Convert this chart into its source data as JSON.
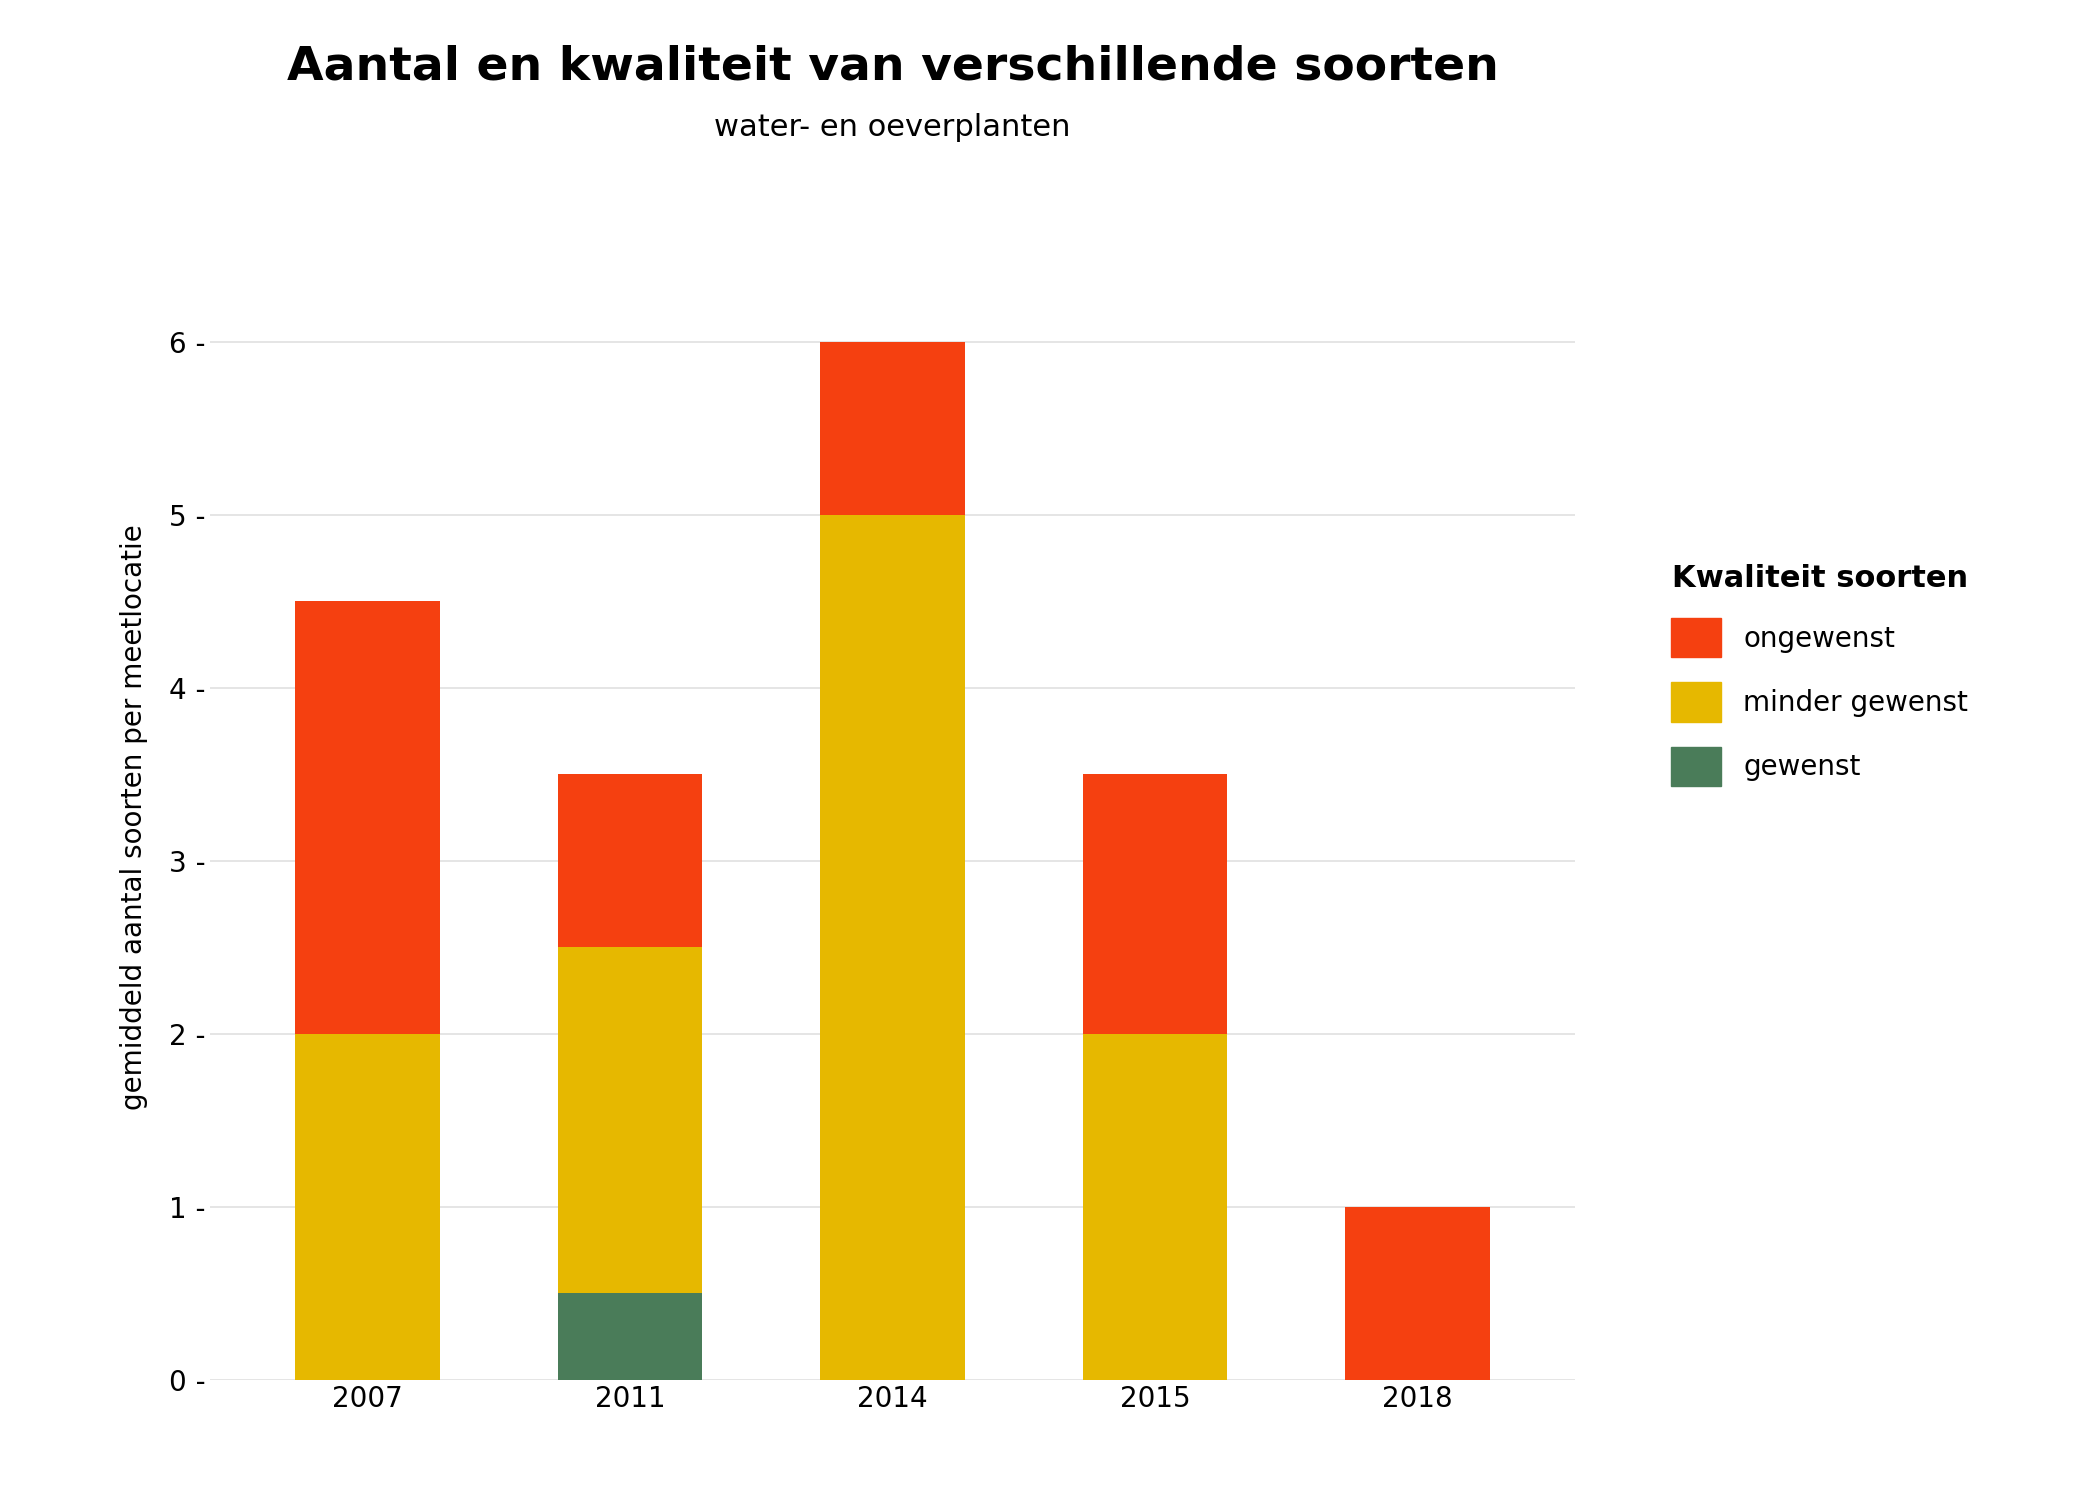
{
  "title": "Aantal en kwaliteit van verschillende soorten",
  "subtitle": "water- en oeverplanten",
  "ylabel": "gemiddeld aantal soorten per meetlocatie",
  "years": [
    "2007",
    "2011",
    "2014",
    "2015",
    "2018"
  ],
  "gewenst": [
    0,
    0.5,
    0,
    0,
    0
  ],
  "minder_gewenst": [
    2.0,
    2.0,
    5.0,
    2.0,
    0
  ],
  "ongewenst": [
    2.5,
    1.0,
    1.0,
    1.5,
    1.0
  ],
  "color_gewenst": "#4a7c59",
  "color_minder_gewenst": "#e6b800",
  "color_ongewenst": "#f54010",
  "legend_title": "Kwaliteit soorten",
  "ylim": [
    0,
    6.5
  ],
  "yticks": [
    0,
    1,
    2,
    3,
    4,
    5,
    6
  ],
  "background_color": "#ffffff",
  "grid_color": "#e0e0e0",
  "bar_width": 0.55,
  "title_fontsize": 34,
  "subtitle_fontsize": 22,
  "ylabel_fontsize": 20,
  "tick_fontsize": 20,
  "legend_fontsize": 20,
  "legend_title_fontsize": 22
}
